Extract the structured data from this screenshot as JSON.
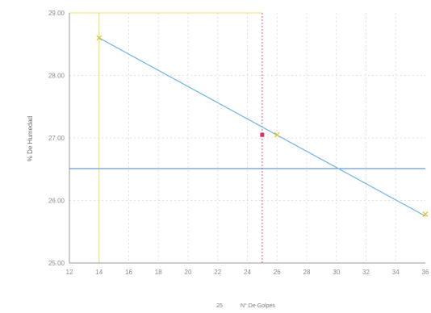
{
  "chart_data": {
    "type": "scatter",
    "title": "",
    "xlabel": "N° De Golpes",
    "ylabel": "% De Humedad",
    "xlim": [
      12,
      36
    ],
    "ylim": [
      25.0,
      29.0
    ],
    "x_ticks": [
      "12",
      "14",
      "16",
      "18",
      "20",
      "22",
      "24",
      "26",
      "28",
      "30",
      "32",
      "34",
      "36"
    ],
    "y_ticks": [
      "25.00",
      "26.00",
      "27.00",
      "28.00",
      "29.00"
    ],
    "grid": true,
    "legend": {
      "position": "bottom-center",
      "marker_label": "25",
      "label": "N° De Golpes"
    },
    "series": [
      {
        "marker": "x",
        "points": [
          {
            "x": 14,
            "y": 28.6
          },
          {
            "x": 26,
            "y": 27.05
          },
          {
            "x": 36,
            "y": 25.78
          }
        ]
      },
      {
        "marker": "square",
        "points": [
          {
            "x": 25,
            "y": 27.05
          }
        ]
      }
    ],
    "trendline": {
      "from": {
        "x": 14,
        "y": 28.6
      },
      "to": {
        "x": 36,
        "y": 25.75
      }
    },
    "reference_lines": {
      "vertical_x": 25,
      "horizontal_y": 26.51
    },
    "colors": {
      "trendline": "#6bb6e6",
      "reference_horizontal": "#4a7fd0",
      "reference_vertical": "#e05a8a",
      "grid": "#d8d8d8",
      "highlight_grid": "#e8e06a",
      "marker_x": "#e0c020",
      "marker_square": "#d4336e",
      "axis": "#9a9a9a"
    }
  }
}
